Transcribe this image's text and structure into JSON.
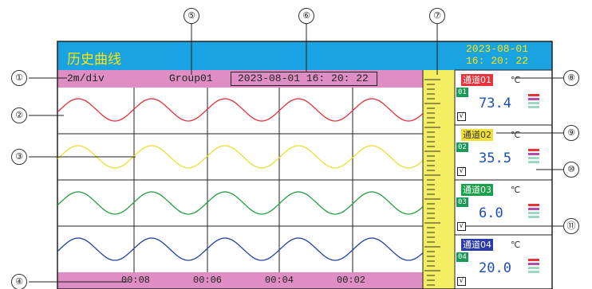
{
  "header": {
    "title": "历史曲线",
    "date": "2023-08-01",
    "time": "16: 20: 22"
  },
  "info_bar": {
    "scale": "2m/div",
    "group": "Group01",
    "timestamp": "2023-08-01 16: 20: 22"
  },
  "time_axis": {
    "ticks": [
      "00:08",
      "00:06",
      "00:04",
      "00:02"
    ]
  },
  "callouts": [
    "①",
    "②",
    "③",
    "④",
    "⑤",
    "⑥",
    "⑦",
    "⑧",
    "⑨",
    "⑩",
    "⑪"
  ],
  "channels": [
    {
      "label": "通道01",
      "label_color": "#e8333a",
      "id": "01",
      "unit": "℃",
      "value": "73.4",
      "checked": "√",
      "curve_color": "#e0303a"
    },
    {
      "label": "通道02",
      "label_color": "#f2e03a",
      "id": "02",
      "unit": "℃",
      "value": "35.5",
      "checked": "√",
      "curve_color": "#e8e030"
    },
    {
      "label": "通道03",
      "label_color": "#1aa04a",
      "id": "03",
      "unit": "℃",
      "value": "6.0",
      "checked": "√",
      "curve_color": "#20a040"
    },
    {
      "label": "通道04",
      "label_color": "#2a3aa8",
      "id": "04",
      "unit": "℃",
      "value": "20.0",
      "checked": "√",
      "curve_color": "#2040a0"
    }
  ],
  "colors": {
    "title_bar": "#1aa3e3",
    "info_bar": "#de8ec4",
    "ruler": "#f4ee62"
  }
}
